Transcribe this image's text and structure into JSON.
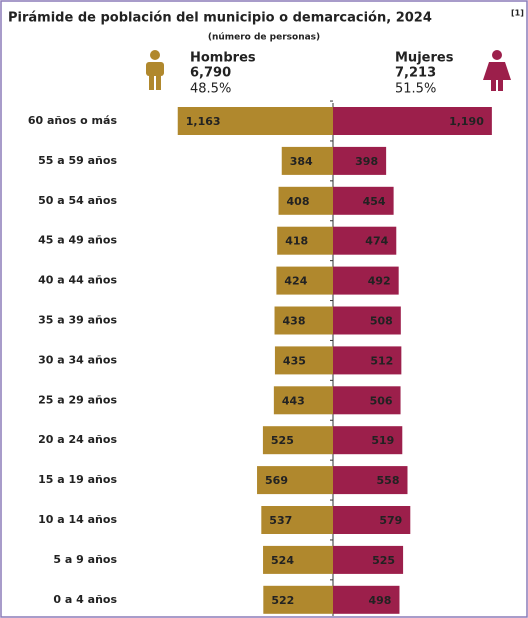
{
  "chart_data": {
    "type": "pyramid",
    "title": "Pirámide de población del municipio o demarcación, 2024",
    "title_note": "[1]",
    "subtitle": "(número de personas)",
    "categories": [
      "60 años o más",
      "55 a 59 años",
      "50 a 54 años",
      "45 a 49 años",
      "40 a 44 años",
      "35 a 39 años",
      "30 a 34 años",
      "25 a 29 años",
      "20 a 24 años",
      "15 a 19 años",
      "10 a 14 años",
      "5 a 9 años",
      "0 a 4 años"
    ],
    "series": [
      {
        "name": "Hombres",
        "color": "#b0882d",
        "total": {
          "value": 6790,
          "label": "6,790"
        },
        "share": {
          "value": 48.5,
          "label": "48.5%"
        },
        "values": [
          1163,
          384,
          408,
          418,
          424,
          438,
          435,
          443,
          525,
          569,
          537,
          524,
          522
        ],
        "value_labels": [
          "1,163",
          "384",
          "408",
          "418",
          "424",
          "438",
          "435",
          "443",
          "525",
          "569",
          "537",
          "524",
          "522"
        ]
      },
      {
        "name": "Mujeres",
        "color": "#9c1f4b",
        "total": {
          "value": 7213,
          "label": "7,213"
        },
        "share": {
          "value": 51.5,
          "label": "51.5%"
        },
        "values": [
          1190,
          398,
          454,
          474,
          492,
          508,
          512,
          506,
          519,
          558,
          579,
          525,
          498
        ],
        "value_labels": [
          "1,190",
          "398",
          "454",
          "474",
          "492",
          "508",
          "512",
          "506",
          "519",
          "558",
          "579",
          "525",
          "498"
        ]
      }
    ]
  }
}
